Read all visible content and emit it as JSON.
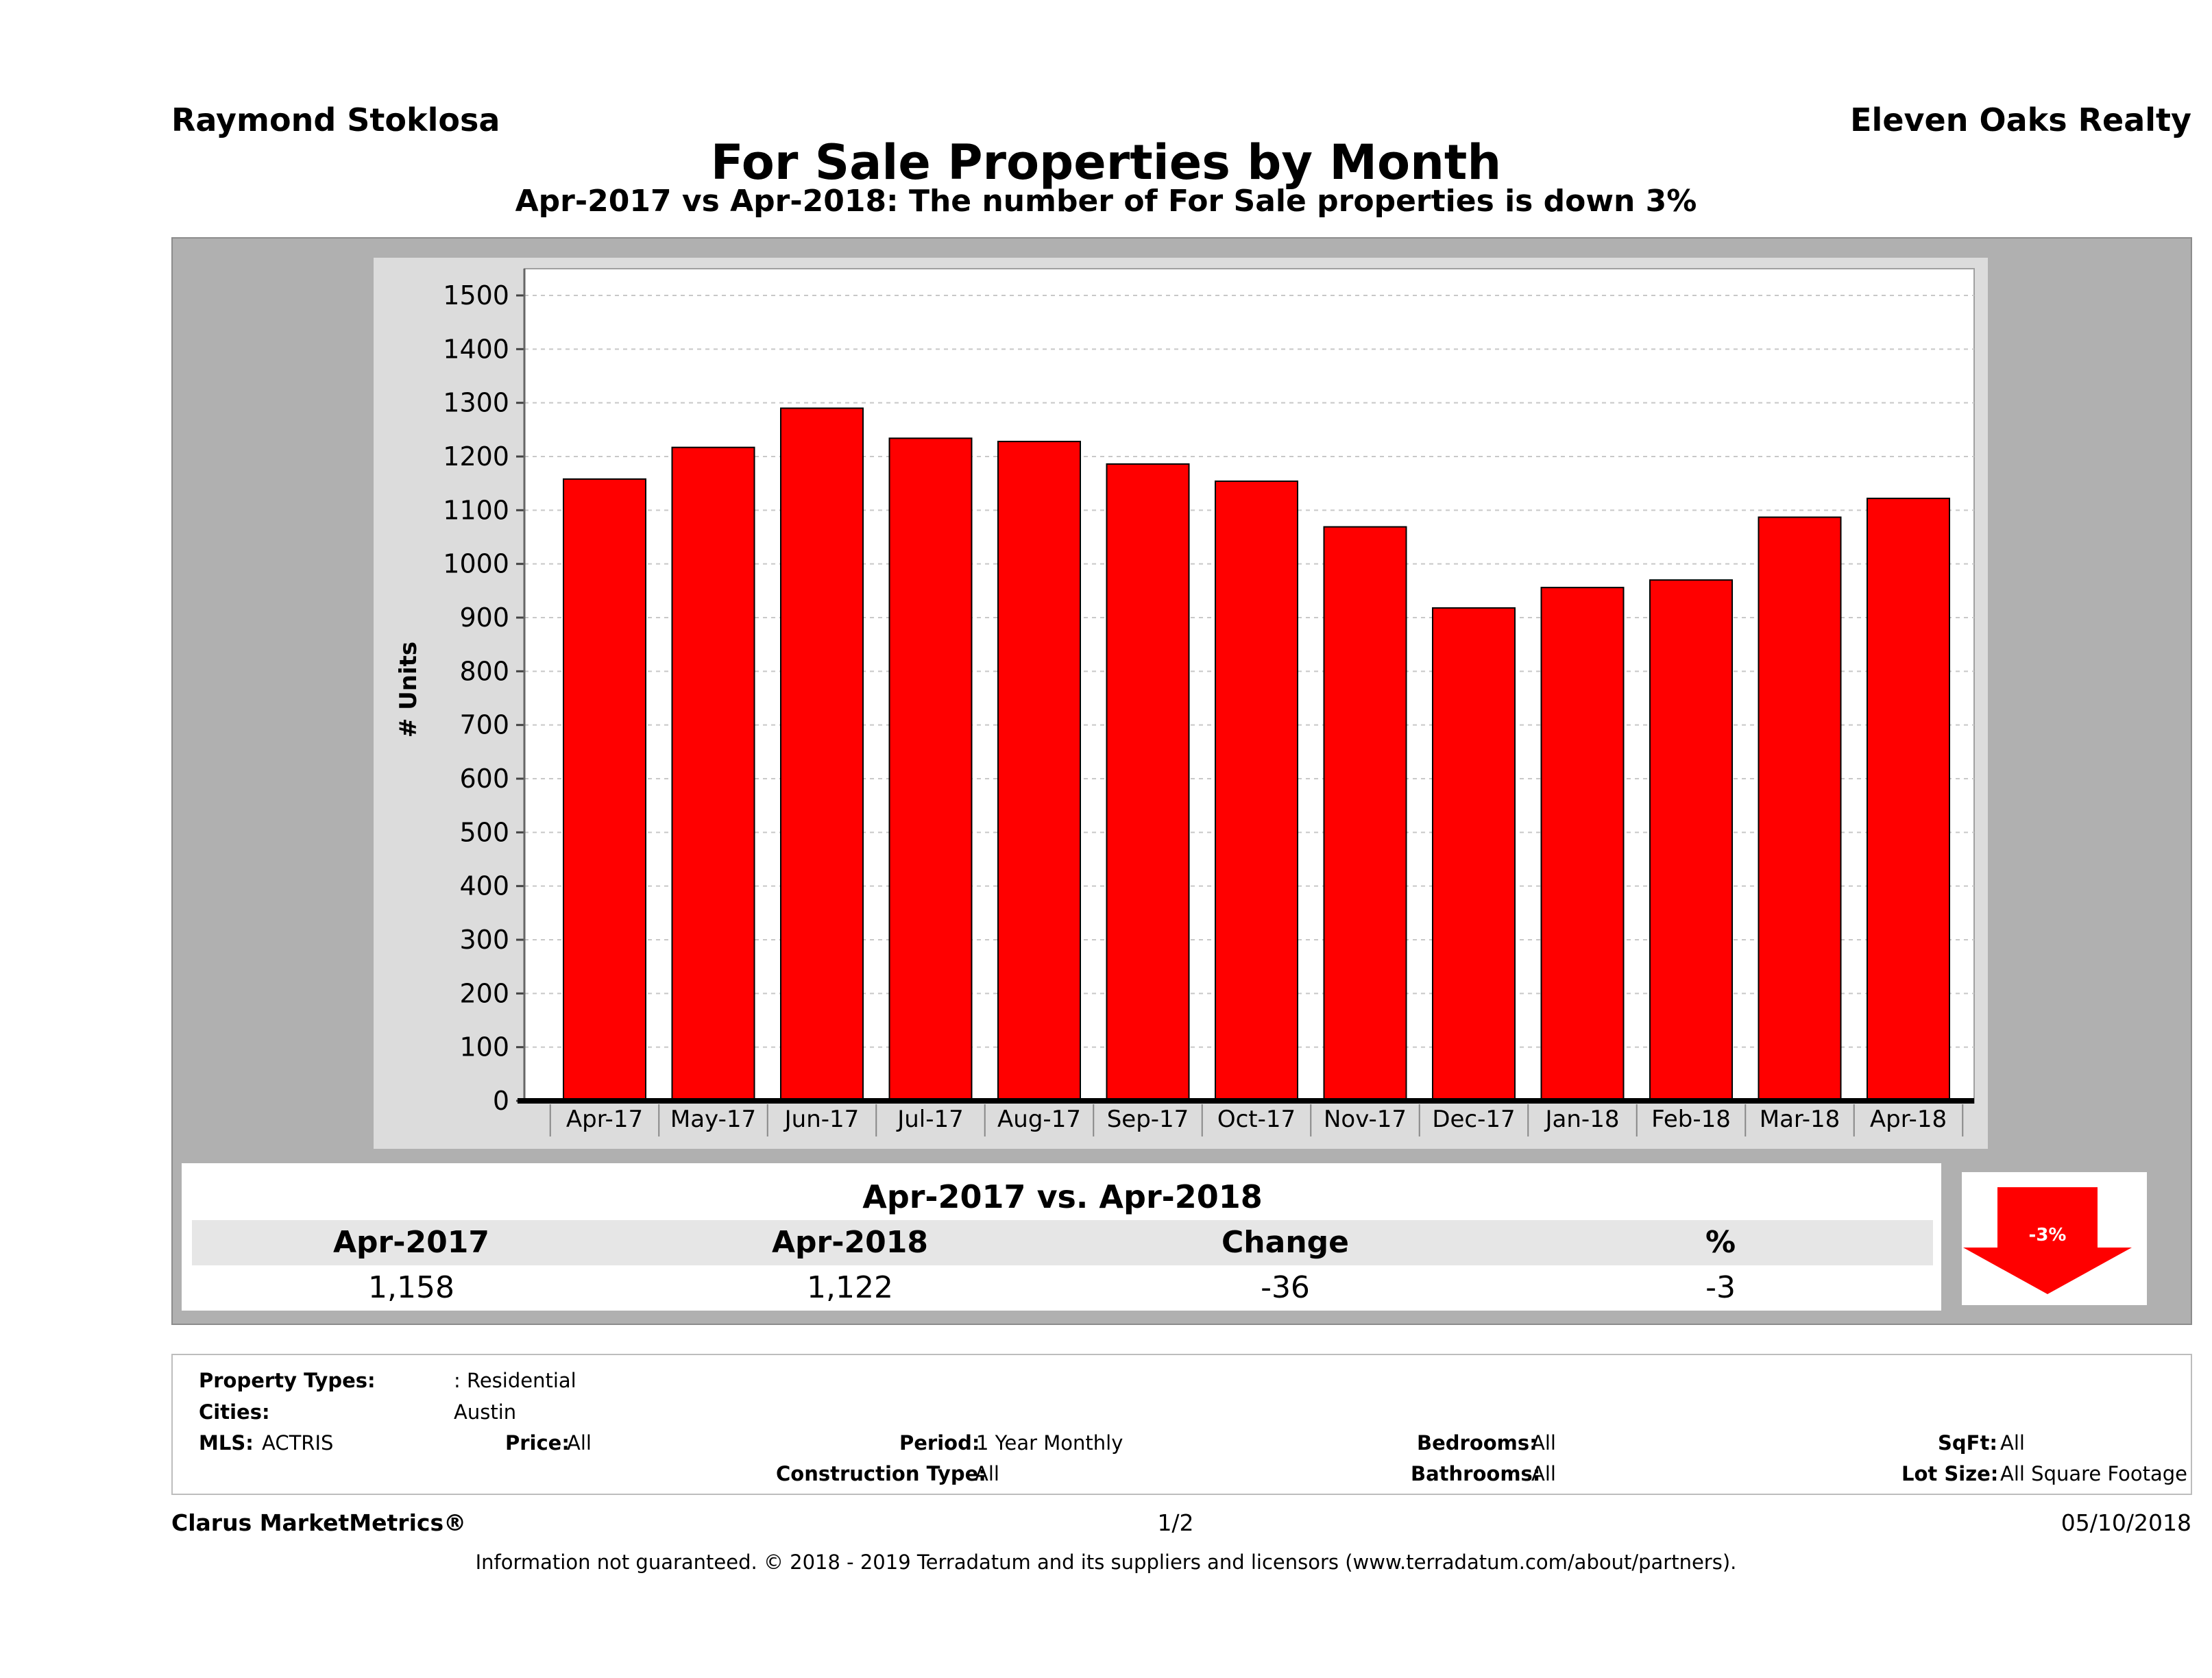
{
  "header": {
    "agent": "Raymond Stoklosa",
    "broker": "Eleven Oaks Realty",
    "title": "For Sale Properties by Month",
    "subtitle": "Apr-2017 vs Apr-2018: The number of For Sale  properties is down 3%"
  },
  "chart_data": {
    "type": "bar",
    "categories": [
      "Apr-17",
      "May-17",
      "Jun-17",
      "Jul-17",
      "Aug-17",
      "Sep-17",
      "Oct-17",
      "Nov-17",
      "Dec-17",
      "Jan-18",
      "Feb-18",
      "Mar-18",
      "Apr-18"
    ],
    "values": [
      1158,
      1217,
      1290,
      1234,
      1228,
      1186,
      1154,
      1069,
      918,
      956,
      970,
      1087,
      1122
    ],
    "ylabel": "# Units",
    "ylim": [
      0,
      1500
    ],
    "yticks": [
      0,
      100,
      200,
      300,
      400,
      500,
      600,
      700,
      800,
      900,
      1000,
      1100,
      1200,
      1300,
      1400,
      1500
    ],
    "bar_color": "#ff0000",
    "grid": true
  },
  "summary": {
    "title": "Apr-2017 vs. Apr-2018",
    "headers": [
      "Apr-2017",
      "Apr-2018",
      "Change",
      "%"
    ],
    "values": [
      "1,158",
      "1,122",
      "-36",
      "-3"
    ],
    "badge": "-3%"
  },
  "info": {
    "property_types_label": "Property Types:",
    "property_types_value": ": Residential",
    "cities_label": "Cities:",
    "cities_value": "Austin",
    "mls_label": "MLS:",
    "mls_value": "ACTRIS",
    "price_label": "Price:",
    "price_value": "All",
    "period_label": "Period:",
    "period_value": "1 Year Monthly",
    "bedrooms_label": "Bedrooms:",
    "bedrooms_value": "All",
    "sqft_label": "SqFt:",
    "sqft_value": "All",
    "construction_label": "Construction Type:",
    "construction_value": "All",
    "bathrooms_label": "Bathrooms:",
    "bathrooms_value": "All",
    "lotsize_label": "Lot Size:",
    "lotsize_value": "All Square Footage"
  },
  "footer": {
    "brand": "Clarus MarketMetrics®",
    "page": "1/2",
    "date": "05/10/2018",
    "disclaimer": "Information not guaranteed. © 2018 - 2019 Terradatum and its suppliers and licensors (www.terradatum.com/about/partners)."
  }
}
